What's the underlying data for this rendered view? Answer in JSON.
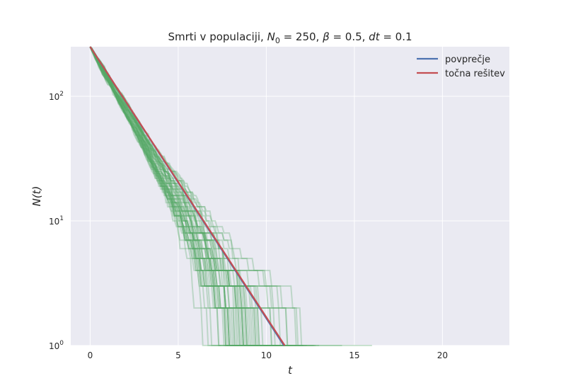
{
  "chart_data": {
    "type": "line",
    "title": "Smrti v populaciji, N_0 =  250, β =  0.5, dt =  0.1",
    "title_parts": {
      "prefix": "Smrti v populaciji, ",
      "n_symbol": "N",
      "n_sub": "0",
      "n_eq": " =  250, ",
      "beta_symbol": "β",
      "beta_eq": " =  0.5, ",
      "dt_symbol": "dt",
      "dt_eq": " =  0.1"
    },
    "xlabel": "t",
    "ylabel": "N(t)",
    "xlim": [
      -1.1,
      23.8
    ],
    "ylim": [
      1,
      250
    ],
    "y_scale": "log",
    "x_ticks": [
      0,
      5,
      10,
      15,
      20
    ],
    "x_tick_labels": [
      "0",
      "5",
      "10",
      "15",
      "20"
    ],
    "y_ticks": [
      1,
      10,
      100
    ],
    "y_tick_labels": [
      {
        "base": "10",
        "exp": "0"
      },
      {
        "base": "10",
        "exp": "1"
      },
      {
        "base": "10",
        "exp": "2"
      }
    ],
    "grid": true,
    "legend_position": "top-right",
    "N0": 250,
    "beta": 0.5,
    "dt": 0.1,
    "series": [
      {
        "name": "povprečje",
        "color": "#4c72b0",
        "kind": "average",
        "x": [
          0,
          11.0
        ],
        "y": [
          250,
          1
        ]
      },
      {
        "name": "točna rešitev",
        "color": "#c44e52",
        "kind": "exact",
        "x": [
          0,
          11.05
        ],
        "y": [
          250,
          1
        ]
      }
    ],
    "simulations": {
      "color": "#55a868",
      "count": 50,
      "opacity": 0.3
    }
  },
  "colors": {
    "background": "#eaeaf2",
    "grid": "#ffffff",
    "text": "#262626"
  }
}
